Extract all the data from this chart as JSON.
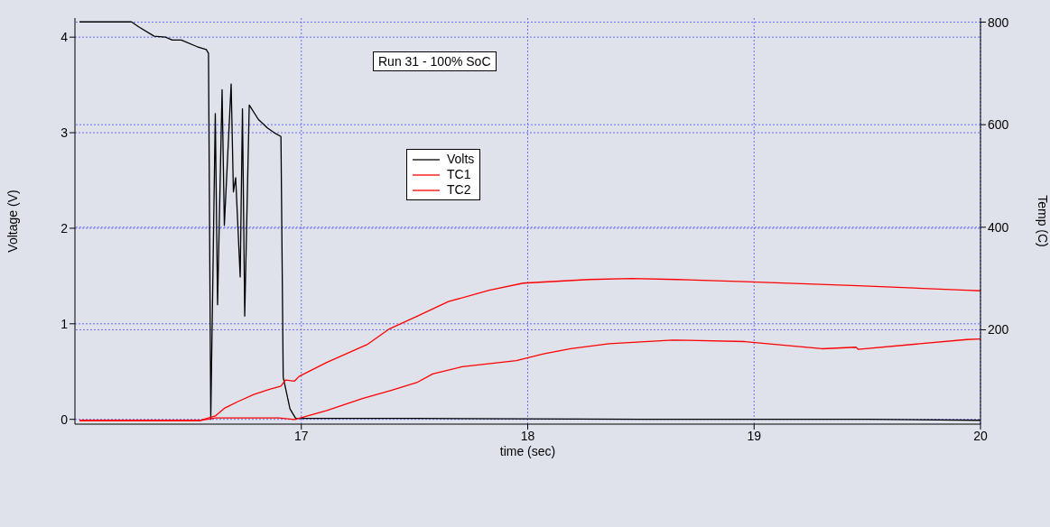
{
  "chart_data": {
    "type": "line",
    "title": "Run 31 - 100% SoC",
    "xlabel": "time (sec)",
    "ylabel": "Voltage (V)",
    "y2label": "Temp (C)",
    "xlim": [
      16.0,
      20
    ],
    "xticks": [
      17,
      18,
      19,
      20
    ],
    "ylim": [
      -0.05,
      4.2
    ],
    "yticks": [
      0,
      1,
      2,
      3,
      4
    ],
    "y2lim": [
      16,
      808
    ],
    "y2ticks": [
      200,
      400,
      600,
      800
    ],
    "grid": true,
    "legend": "top",
    "marker": "none",
    "line_style": "solid",
    "series": [
      {
        "name": "Volts",
        "color": "#000000",
        "x": [
          16.02,
          16.25,
          16.28,
          16.35,
          16.4,
          16.43,
          16.47,
          16.54,
          16.58,
          16.59,
          16.6,
          16.62,
          16.63,
          16.65,
          16.66,
          16.69,
          16.7,
          16.71,
          16.73,
          16.74,
          16.75,
          16.77,
          16.81,
          16.85,
          16.88,
          16.91,
          16.92,
          16.95,
          16.975,
          17.5,
          18.5,
          19.5,
          20
        ],
        "values": [
          4.16,
          4.16,
          4.11,
          4.01,
          4.0,
          3.97,
          3.97,
          3.9,
          3.87,
          3.83,
          0.0,
          3.2,
          1.2,
          3.45,
          2.03,
          3.51,
          2.38,
          2.53,
          1.49,
          3.25,
          1.08,
          3.29,
          3.14,
          3.05,
          3.0,
          2.96,
          0.44,
          0.11,
          0.01,
          0.01,
          0.0,
          0.0,
          -0.01
        ]
      },
      {
        "name": "TC1",
        "color": "#ff0000",
        "axis": "y2",
        "x": [
          16.02,
          16.55,
          16.58,
          16.62,
          16.66,
          16.72,
          16.79,
          16.86,
          16.91,
          16.93,
          16.97,
          16.99,
          17.11,
          17.29,
          17.39,
          17.51,
          17.65,
          17.83,
          17.98,
          18.27,
          18.46,
          18.66,
          18.96,
          19.46,
          19.94,
          20
        ],
        "values": [
          23,
          23,
          27,
          32,
          47,
          60,
          74,
          84,
          90,
          102,
          100,
          109,
          136,
          171,
          202,
          226,
          255,
          277,
          291,
          298,
          300,
          298,
          294,
          286,
          277,
          276
        ]
      },
      {
        "name": "TC2",
        "color": "#ff0000",
        "axis": "y2",
        "x": [
          16.02,
          16.55,
          16.62,
          16.9,
          16.97,
          17.11,
          17.27,
          17.39,
          17.51,
          17.58,
          17.71,
          17.95,
          18.07,
          18.19,
          18.36,
          18.64,
          18.96,
          19.3,
          19.45,
          19.46,
          19.94,
          20
        ],
        "values": [
          23,
          23,
          28,
          28,
          25,
          42,
          66,
          81,
          97,
          114,
          128,
          140,
          153,
          163,
          173,
          180,
          177,
          163,
          166,
          162,
          181,
          182
        ]
      }
    ]
  }
}
